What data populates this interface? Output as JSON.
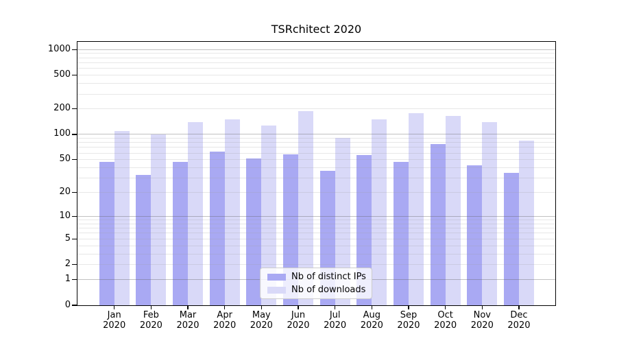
{
  "title": "TSRchitect 2020",
  "colors": {
    "ips_bar": "#a9a9f3",
    "downloads_bar": "#d9d9f8",
    "grid_major": "rgba(100,100,100,0.40)",
    "grid_minor": "rgba(160,160,160,0.25)",
    "axis": "#000000",
    "legend_border": "#cccccc"
  },
  "legend": {
    "items": [
      {
        "label": "Nb of distinct IPs"
      },
      {
        "label": "Nb of downloads"
      }
    ]
  },
  "y_axis": {
    "tick_values": [
      0,
      1,
      2,
      5,
      10,
      20,
      50,
      100,
      200,
      500,
      1000
    ]
  },
  "chart_data": {
    "type": "bar",
    "title": "TSRchitect 2020",
    "categories": [
      "Jan",
      "Feb",
      "Mar",
      "Apr",
      "May",
      "Jun",
      "Jul",
      "Aug",
      "Sep",
      "Oct",
      "Nov",
      "Dec"
    ],
    "year": "2020",
    "series": [
      {
        "name": "Nb of distinct IPs",
        "color_key": "ips_bar",
        "values": [
          47,
          33,
          47,
          62,
          52,
          58,
          37,
          57,
          47,
          77,
          43,
          35
        ]
      },
      {
        "name": "Nb of downloads",
        "color_key": "downloads_bar",
        "values": [
          110,
          100,
          141,
          150,
          127,
          190,
          91,
          152,
          178,
          167,
          140,
          85
        ]
      }
    ],
    "xlabel": "",
    "ylabel": "",
    "yscale": "log1p",
    "yticks": [
      0,
      1,
      2,
      5,
      10,
      20,
      50,
      100,
      200,
      500,
      1000
    ],
    "ylim": [
      0,
      1210
    ],
    "grid": "on",
    "legend_position": "lower-center"
  }
}
